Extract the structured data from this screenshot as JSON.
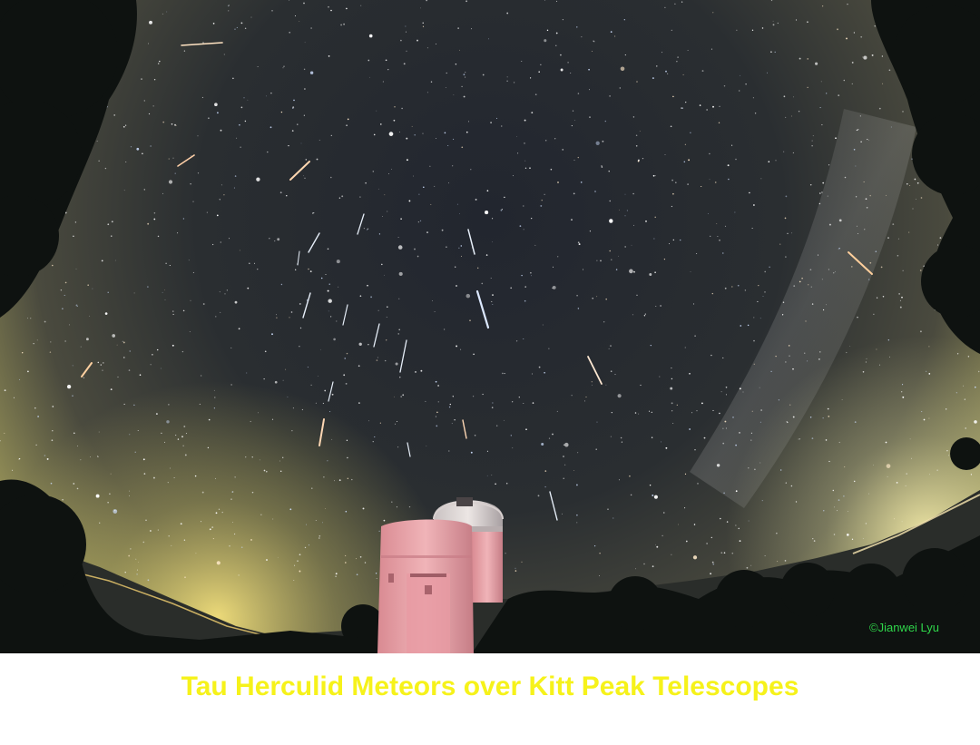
{
  "photo": {
    "subject": "night-sky-meteors-observatory",
    "credit": "©Jianwei Lyu"
  },
  "caption": {
    "title": "Tau Herculid Meteors over Kitt Peak Telescopes"
  },
  "colors": {
    "caption": "#f6f21a",
    "credit": "#2fd64a",
    "sky_top": "#1c2029",
    "horizon_glow": "#d9c766",
    "dome_pink": "#e8a3a8",
    "background": "#ffffff"
  }
}
